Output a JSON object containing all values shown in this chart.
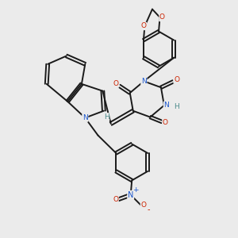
{
  "background_color": "#ebebeb",
  "bond_color": "#1a1a1a",
  "atom_colors": {
    "N": "#1a56cc",
    "O": "#cc2200",
    "H": "#4a8a8a",
    "C": "#1a1a1a"
  },
  "figsize": [
    3.0,
    3.0
  ],
  "dpi": 100
}
